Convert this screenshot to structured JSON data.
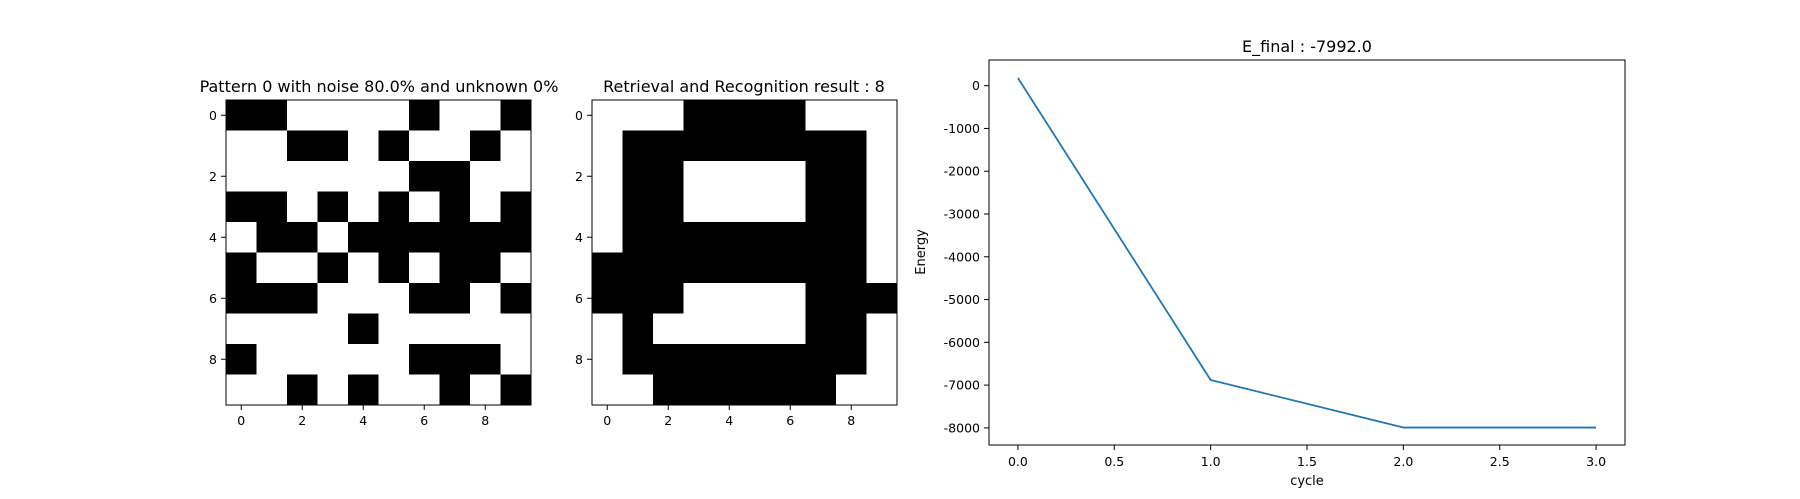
{
  "chart_data": [
    {
      "type": "heatmap",
      "title": "Pattern 0 with noise 80.0% and unknown 0%",
      "x_ticks": [
        "0",
        "2",
        "4",
        "6",
        "8"
      ],
      "y_ticks": [
        "0",
        "2",
        "4",
        "6",
        "8"
      ],
      "colors": {
        "on": "#000000",
        "off": "#ffffff"
      },
      "grid": [
        [
          1,
          1,
          0,
          0,
          0,
          0,
          1,
          0,
          0,
          1
        ],
        [
          0,
          0,
          1,
          1,
          0,
          1,
          0,
          0,
          1,
          0
        ],
        [
          0,
          0,
          0,
          0,
          0,
          0,
          1,
          1,
          0,
          0
        ],
        [
          1,
          1,
          0,
          1,
          0,
          1,
          0,
          1,
          0,
          1
        ],
        [
          0,
          1,
          1,
          0,
          1,
          1,
          1,
          1,
          1,
          1
        ],
        [
          1,
          0,
          0,
          1,
          0,
          1,
          0,
          1,
          1,
          0
        ],
        [
          1,
          1,
          1,
          0,
          0,
          0,
          1,
          1,
          0,
          1
        ],
        [
          0,
          0,
          0,
          0,
          1,
          0,
          0,
          0,
          0,
          0
        ],
        [
          1,
          0,
          0,
          0,
          0,
          0,
          1,
          1,
          1,
          0
        ],
        [
          0,
          0,
          1,
          0,
          1,
          0,
          0,
          1,
          0,
          1
        ]
      ]
    },
    {
      "type": "heatmap",
      "title": "Retrieval and Recognition result : 8",
      "x_ticks": [
        "0",
        "2",
        "4",
        "6",
        "8"
      ],
      "y_ticks": [
        "0",
        "2",
        "4",
        "6",
        "8"
      ],
      "colors": {
        "on": "#000000",
        "off": "#ffffff"
      },
      "grid": [
        [
          0,
          0,
          0,
          1,
          1,
          1,
          1,
          0,
          0,
          0
        ],
        [
          0,
          1,
          1,
          1,
          1,
          1,
          1,
          1,
          1,
          0
        ],
        [
          0,
          1,
          1,
          0,
          0,
          0,
          0,
          1,
          1,
          0
        ],
        [
          0,
          1,
          1,
          0,
          0,
          0,
          0,
          1,
          1,
          0
        ],
        [
          0,
          1,
          1,
          1,
          1,
          1,
          1,
          1,
          1,
          0
        ],
        [
          1,
          1,
          1,
          1,
          1,
          1,
          1,
          1,
          1,
          0
        ],
        [
          1,
          1,
          1,
          0,
          0,
          0,
          0,
          1,
          1,
          1
        ],
        [
          0,
          1,
          0,
          0,
          0,
          0,
          0,
          1,
          1,
          0
        ],
        [
          0,
          1,
          1,
          1,
          1,
          1,
          1,
          1,
          1,
          0
        ],
        [
          0,
          0,
          1,
          1,
          1,
          1,
          1,
          1,
          0,
          0
        ]
      ]
    },
    {
      "type": "line",
      "title": "E_final : -7992.0",
      "xlabel": "cycle",
      "ylabel": "Energy",
      "xlim": [
        -0.15,
        3.15
      ],
      "ylim": [
        -8400,
        600
      ],
      "x_ticks": [
        "0.0",
        "0.5",
        "1.0",
        "1.5",
        "2.0",
        "2.5",
        "3.0"
      ],
      "y_ticks": [
        "0",
        "-1000",
        "-2000",
        "-3000",
        "-4000",
        "-5000",
        "-6000",
        "-7000",
        "-8000"
      ],
      "line_color": "#1f77b4",
      "x": [
        0,
        1,
        2,
        3
      ],
      "y": [
        180,
        -6880,
        -7992,
        -7992
      ]
    }
  ]
}
